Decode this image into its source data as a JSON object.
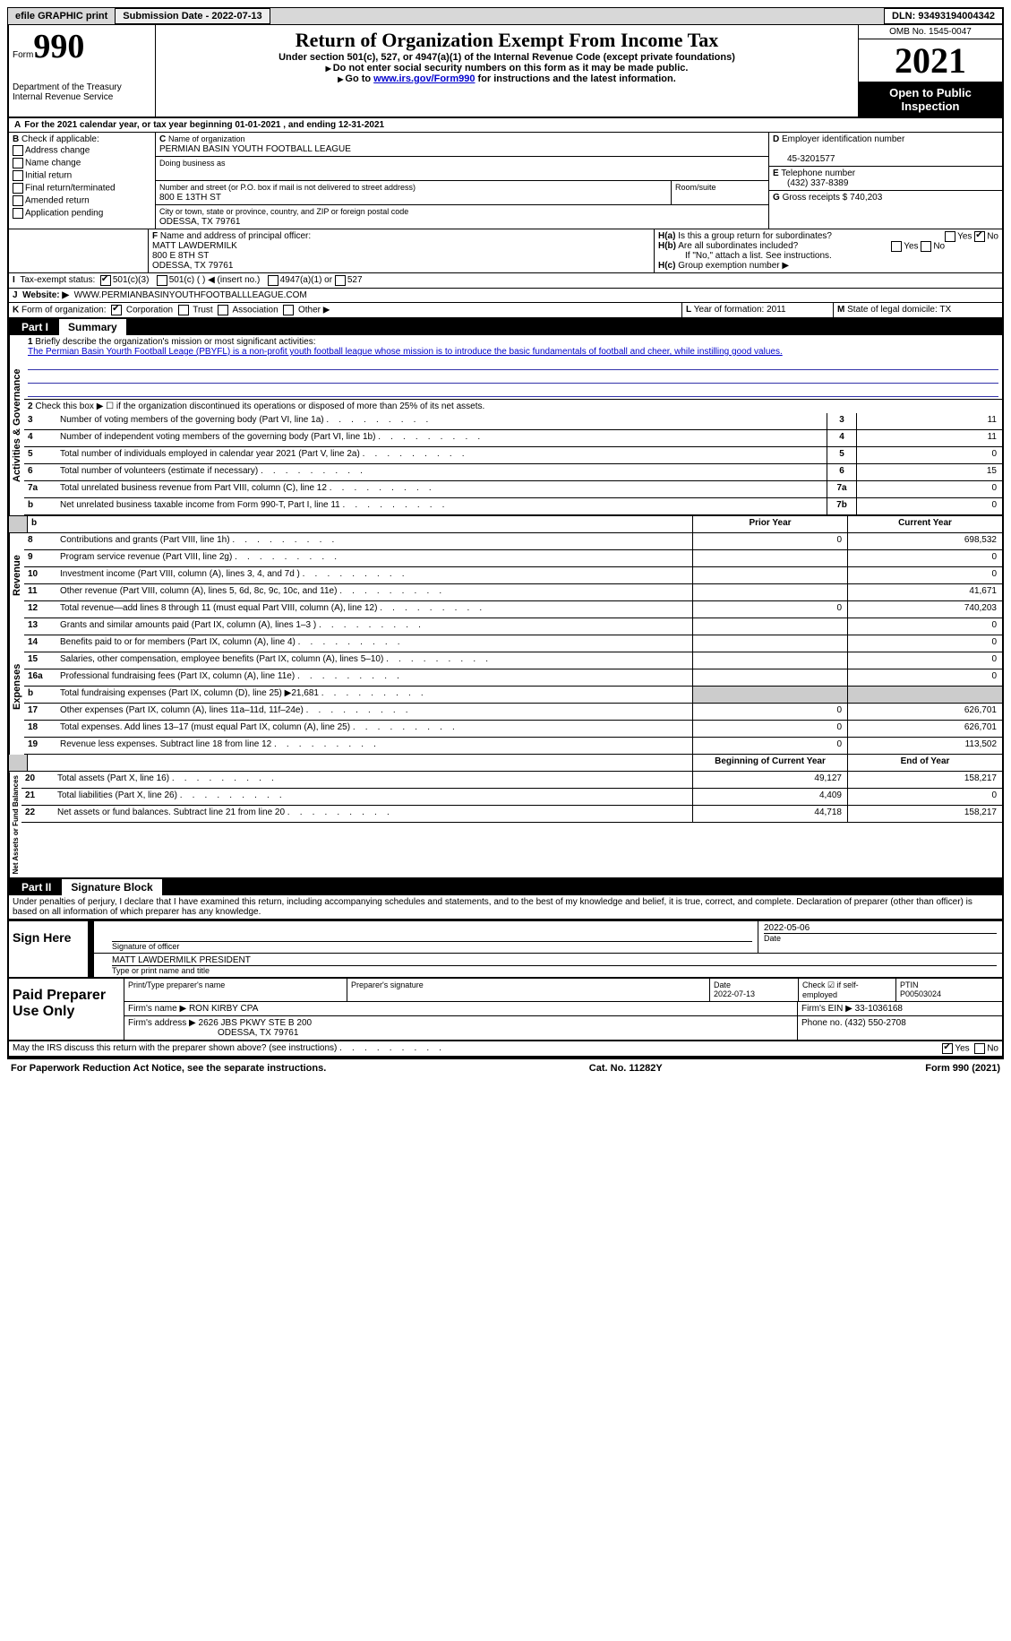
{
  "topbar": {
    "efile": "efile GRAPHIC print",
    "submission_label": "Submission Date - ",
    "submission_value": "2022-07-13",
    "dln_label": "DLN: ",
    "dln_value": "93493194004342"
  },
  "header": {
    "form_prefix": "Form",
    "form_no": "990",
    "dept": "Department of the Treasury",
    "irs": "Internal Revenue Service",
    "title": "Return of Organization Exempt From Income Tax",
    "sub1": "Under section 501(c), 527, or 4947(a)(1) of the Internal Revenue Code (except private foundations)",
    "sub2": "Do not enter social security numbers on this form as it may be made public.",
    "sub3_pre": "Go to ",
    "sub3_link": "www.irs.gov/Form990",
    "sub3_post": " for instructions and the latest information.",
    "omb": "OMB No. 1545-0047",
    "year": "2021",
    "open1": "Open to Public",
    "open2": "Inspection"
  },
  "A": {
    "line": "For the 2021 calendar year, or tax year beginning 01-01-2021    , and ending 12-31-2021"
  },
  "B": {
    "label": "Check if applicable:",
    "opts": [
      "Address change",
      "Name change",
      "Initial return",
      "Final return/terminated",
      "Amended return",
      "Application pending"
    ]
  },
  "C": {
    "name_lbl": "Name of organization",
    "name": "PERMIAN BASIN YOUTH FOOTBALL LEAGUE",
    "dba_lbl": "Doing business as",
    "addr_lbl": "Number and street (or P.O. box if mail is not delivered to street address)",
    "room_lbl": "Room/suite",
    "addr": "800 E 13TH ST",
    "city_lbl": "City or town, state or province, country, and ZIP or foreign postal code",
    "city": "ODESSA, TX  79761"
  },
  "D": {
    "lbl": "Employer identification number",
    "val": "45-3201577"
  },
  "E": {
    "lbl": "Telephone number",
    "val": "(432) 337-8389"
  },
  "G": {
    "lbl": "Gross receipts $",
    "val": "740,203"
  },
  "F": {
    "lbl": "Name and address of principal officer:",
    "name": "MATT LAWDERMILK",
    "addr1": "800 E 8TH ST",
    "addr2": "ODESSA, TX  79761"
  },
  "H": {
    "a": "Is this a group return for subordinates?",
    "b": "Are all subordinates included?",
    "b_note": "If \"No,\" attach a list. See instructions.",
    "c": "Group exemption number"
  },
  "I": {
    "lbl": "Tax-exempt status:",
    "o1": "501(c)(3)",
    "o2": "501(c) (  ) ◀ (insert no.)",
    "o3": "4947(a)(1) or",
    "o4": "527"
  },
  "J": {
    "lbl": "Website: ▶",
    "val": "WWW.PERMIANBASINYOUTHFOOTBALLLEAGUE.COM"
  },
  "K": {
    "lbl": "Form of organization:",
    "o1": "Corporation",
    "o2": "Trust",
    "o3": "Association",
    "o4": "Other ▶"
  },
  "L": {
    "lbl": "Year of formation:",
    "val": "2011"
  },
  "M": {
    "lbl": "State of legal domicile:",
    "val": "TX"
  },
  "part1": {
    "label": "Part I",
    "title": "Summary",
    "q1": "Briefly describe the organization's mission or most significant activities:",
    "mission": "The Permian Basin Yourth Football Leage (PBYFL) is a non-profit youth football league whose mission is to introduce the basic fundamentals of football and cheer, while instilling good values.",
    "q2": "Check this box ▶ ☐ if the organization discontinued its operations or disposed of more than 25% of its net assets.",
    "lines": [
      {
        "n": "3",
        "t": "Number of voting members of the governing body (Part VI, line 1a)",
        "box": "3",
        "v": "11"
      },
      {
        "n": "4",
        "t": "Number of independent voting members of the governing body (Part VI, line 1b)",
        "box": "4",
        "v": "11"
      },
      {
        "n": "5",
        "t": "Total number of individuals employed in calendar year 2021 (Part V, line 2a)",
        "box": "5",
        "v": "0"
      },
      {
        "n": "6",
        "t": "Total number of volunteers (estimate if necessary)",
        "box": "6",
        "v": "15"
      },
      {
        "n": "7a",
        "t": "Total unrelated business revenue from Part VIII, column (C), line 12",
        "box": "7a",
        "v": "0"
      },
      {
        "n": "b",
        "t": "Net unrelated business taxable income from Form 990-T, Part I, line 11",
        "box": "7b",
        "v": "0"
      }
    ],
    "col_prior": "Prior Year",
    "col_current": "Current Year",
    "rev": [
      {
        "n": "8",
        "t": "Contributions and grants (Part VIII, line 1h)",
        "p": "0",
        "c": "698,532"
      },
      {
        "n": "9",
        "t": "Program service revenue (Part VIII, line 2g)",
        "p": "",
        "c": "0"
      },
      {
        "n": "10",
        "t": "Investment income (Part VIII, column (A), lines 3, 4, and 7d )",
        "p": "",
        "c": "0"
      },
      {
        "n": "11",
        "t": "Other revenue (Part VIII, column (A), lines 5, 6d, 8c, 9c, 10c, and 11e)",
        "p": "",
        "c": "41,671"
      },
      {
        "n": "12",
        "t": "Total revenue—add lines 8 through 11 (must equal Part VIII, column (A), line 12)",
        "p": "0",
        "c": "740,203"
      }
    ],
    "exp": [
      {
        "n": "13",
        "t": "Grants and similar amounts paid (Part IX, column (A), lines 1–3 )",
        "p": "",
        "c": "0"
      },
      {
        "n": "14",
        "t": "Benefits paid to or for members (Part IX, column (A), line 4)",
        "p": "",
        "c": "0"
      },
      {
        "n": "15",
        "t": "Salaries, other compensation, employee benefits (Part IX, column (A), lines 5–10)",
        "p": "",
        "c": "0"
      },
      {
        "n": "16a",
        "t": "Professional fundraising fees (Part IX, column (A), line 11e)",
        "p": "",
        "c": "0"
      },
      {
        "n": "b",
        "t": "Total fundraising expenses (Part IX, column (D), line 25) ▶21,681",
        "p": "grey",
        "c": "grey"
      },
      {
        "n": "17",
        "t": "Other expenses (Part IX, column (A), lines 11a–11d, 11f–24e)",
        "p": "0",
        "c": "626,701"
      },
      {
        "n": "18",
        "t": "Total expenses. Add lines 13–17 (must equal Part IX, column (A), line 25)",
        "p": "0",
        "c": "626,701"
      },
      {
        "n": "19",
        "t": "Revenue less expenses. Subtract line 18 from line 12",
        "p": "0",
        "c": "113,502"
      }
    ],
    "col_begin": "Beginning of Current Year",
    "col_end": "End of Year",
    "net": [
      {
        "n": "20",
        "t": "Total assets (Part X, line 16)",
        "p": "49,127",
        "c": "158,217"
      },
      {
        "n": "21",
        "t": "Total liabilities (Part X, line 26)",
        "p": "4,409",
        "c": "0"
      },
      {
        "n": "22",
        "t": "Net assets or fund balances. Subtract line 21 from line 20",
        "p": "44,718",
        "c": "158,217"
      }
    ],
    "vert1": "Activities & Governance",
    "vert2": "Revenue",
    "vert3": "Expenses",
    "vert4": "Net Assets or Fund Balances"
  },
  "part2": {
    "label": "Part II",
    "title": "Signature Block",
    "declaration": "Under penalties of perjury, I declare that I have examined this return, including accompanying schedules and statements, and to the best of my knowledge and belief, it is true, correct, and complete. Declaration of preparer (other than officer) is based on all information of which preparer has any knowledge.",
    "sign_here": "Sign Here",
    "sig_officer": "Signature of officer",
    "sig_date": "2022-05-06",
    "date_lbl": "Date",
    "sig_name": "MATT LAWDERMILK PRESIDENT",
    "type_lbl": "Type or print name and title",
    "paid": "Paid Preparer Use Only",
    "prep_name_lbl": "Print/Type preparer's name",
    "prep_sig_lbl": "Preparer's signature",
    "prep_date_lbl": "Date",
    "prep_date": "2022-07-13",
    "check_lbl": "Check ☑ if self-employed",
    "ptin_lbl": "PTIN",
    "ptin": "P00503024",
    "firm_name_lbl": "Firm's name ▶",
    "firm_name": "RON KIRBY CPA",
    "firm_ein_lbl": "Firm's EIN ▶",
    "firm_ein": "33-1036168",
    "firm_addr_lbl": "Firm's address ▶",
    "firm_addr1": "2626 JBS PKWY STE B 200",
    "firm_addr2": "ODESSA, TX  79761",
    "phone_lbl": "Phone no.",
    "phone": "(432) 550-2708",
    "discuss": "May the IRS discuss this return with the preparer shown above? (see instructions)"
  },
  "footer": {
    "left": "For Paperwork Reduction Act Notice, see the separate instructions.",
    "mid": "Cat. No. 11282Y",
    "right": "Form 990 (2021)"
  }
}
